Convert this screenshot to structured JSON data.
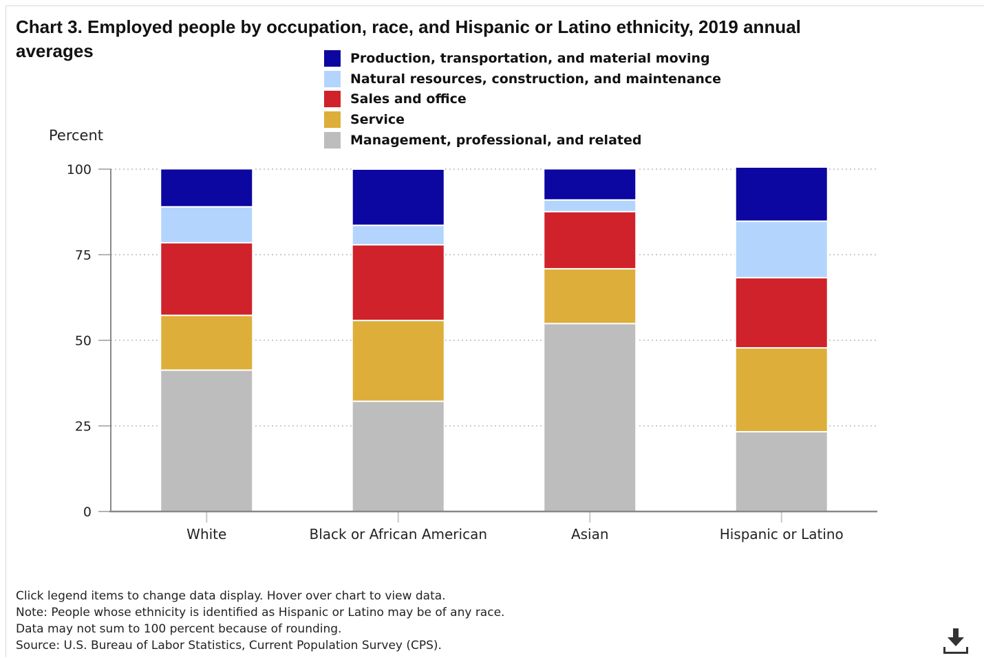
{
  "chart_data": {
    "type": "bar",
    "stacked": true,
    "title": "Chart 3. Employed people by occupation, race, and Hispanic or Latino ethnicity, 2019 annual averages",
    "ylabel": "Percent",
    "xlabel": "",
    "ylim": [
      0,
      100
    ],
    "yticks": [
      "0",
      "25",
      "50",
      "75",
      "100"
    ],
    "grid": true,
    "legend_position": "top",
    "categories": [
      "White",
      "Black or African American",
      "Asian",
      "Hispanic or Latino"
    ],
    "series": [
      {
        "name": "Management, professional, and related",
        "color": "#bdbdbd",
        "values": [
          41.3,
          32.2,
          54.9,
          23.3
        ]
      },
      {
        "name": "Service",
        "color": "#ddae3a",
        "values": [
          16.0,
          23.6,
          16.0,
          24.5
        ]
      },
      {
        "name": "Sales and office",
        "color": "#d0222a",
        "values": [
          21.2,
          22.1,
          16.7,
          20.5
        ]
      },
      {
        "name": "Natural resources, construction, and maintenance",
        "color": "#b3d5fd",
        "values": [
          10.5,
          5.7,
          3.4,
          16.5
        ]
      },
      {
        "name": "Production, transportation, and material moving",
        "color": "#0c07a1",
        "values": [
          11.1,
          16.4,
          9.1,
          15.8
        ]
      }
    ],
    "legend_order": [
      4,
      3,
      2,
      1,
      0
    ]
  },
  "notes": [
    "Click legend items to change data display. Hover over chart to view data.",
    "Note: People whose ethnicity is identified as Hispanic or Latino may be of any race.",
    "Data may not sum to 100 percent because of rounding.",
    "Source: U.S. Bureau of Labor Statistics, Current Population Survey (CPS)."
  ],
  "icons": {
    "download": "download-icon"
  }
}
